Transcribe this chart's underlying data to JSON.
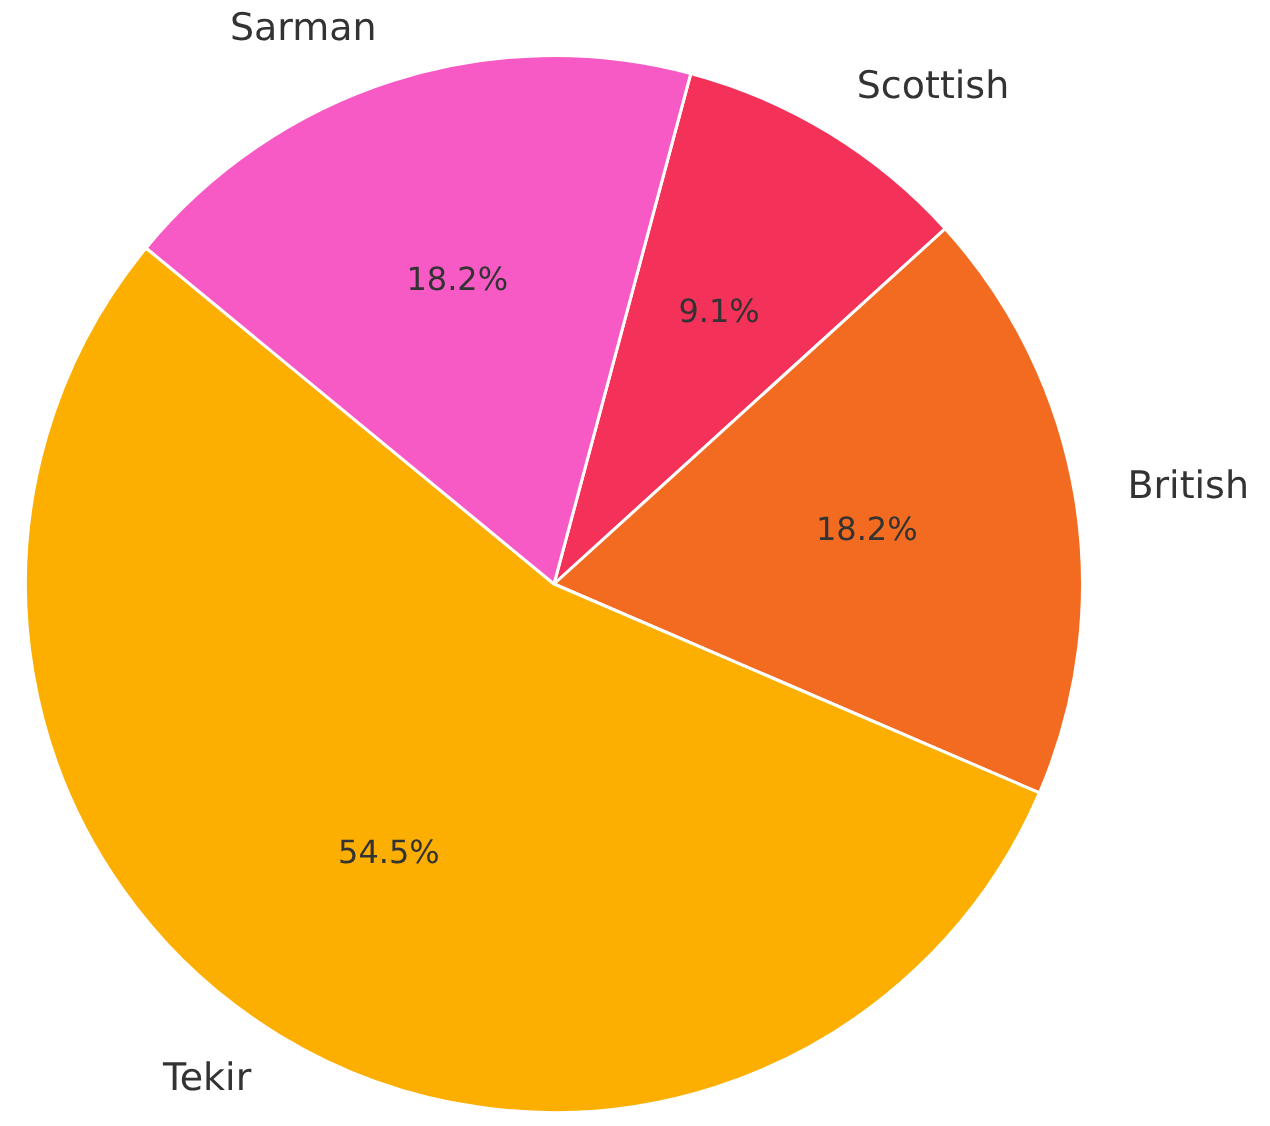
{
  "chart_data": {
    "type": "pie",
    "categories": [
      "Scottish",
      "British",
      "Tekir",
      "Sarman"
    ],
    "values": [
      9.1,
      18.2,
      54.5,
      18.2
    ],
    "colors": [
      "#f43158",
      "#f26b21",
      "#fcaf00",
      "#f75ac5"
    ],
    "value_labels": [
      "9.1%",
      "18.2%",
      "54.5%",
      "18.2%"
    ],
    "legend": false
  }
}
